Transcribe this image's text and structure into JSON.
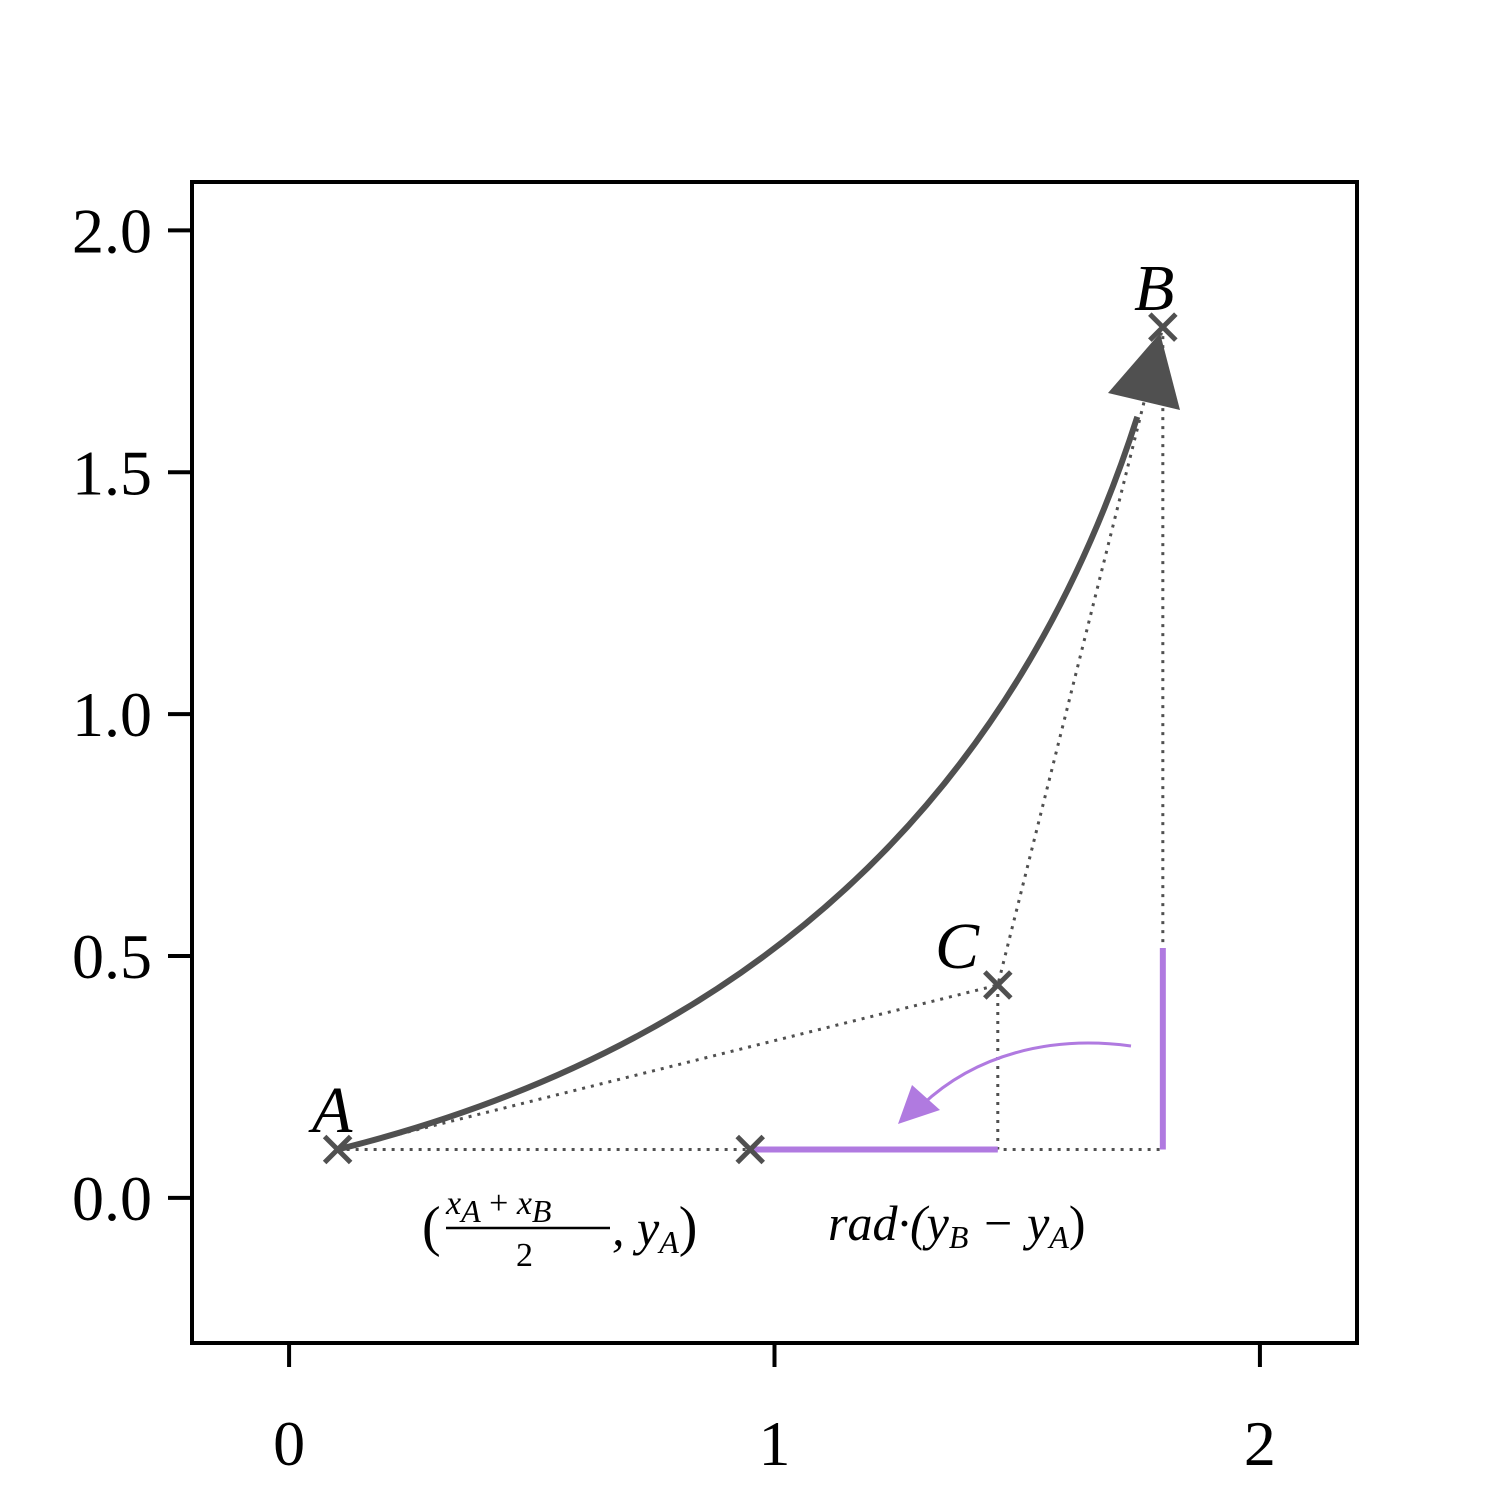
{
  "chart_data": {
    "type": "diagram",
    "xlim": [
      -0.2,
      2.2
    ],
    "ylim": [
      -0.3,
      2.1
    ],
    "xticks": [
      0,
      1,
      2
    ],
    "xtick_labels": [
      "0",
      "1",
      "2"
    ],
    "yticks": [
      0.0,
      0.5,
      1.0,
      1.5,
      2.0
    ],
    "ytick_labels": [
      "0.0",
      "0.5",
      "1.0",
      "1.5",
      "2.0"
    ],
    "grid": false,
    "points": [
      {
        "name": "A",
        "x": 0.1,
        "y": 0.1
      },
      {
        "name": "B",
        "x": 1.8,
        "y": 1.8
      },
      {
        "name": "C",
        "x": 1.46,
        "y": 0.44
      }
    ],
    "midpoint": {
      "x": 0.95,
      "y": 0.1
    },
    "rad": 0.3,
    "colors": {
      "curve": "#505050",
      "accent": "#b07ae0",
      "guide": "#505050"
    },
    "labels": {
      "A": "A",
      "B": "B",
      "C": "C",
      "mid_open": "(",
      "mid_num_x1": "x",
      "mid_num_sub1": "A",
      "mid_plus": " + ",
      "mid_num_x2": "x",
      "mid_num_sub2": "B",
      "mid_den": "2",
      "mid_tail": ", y",
      "mid_tail_sub": "A",
      "mid_close": ")",
      "rad_text": "rad·(y",
      "rad_sub1": "B",
      "rad_minus": " − y",
      "rad_sub2": "A",
      "rad_close": ")"
    }
  }
}
